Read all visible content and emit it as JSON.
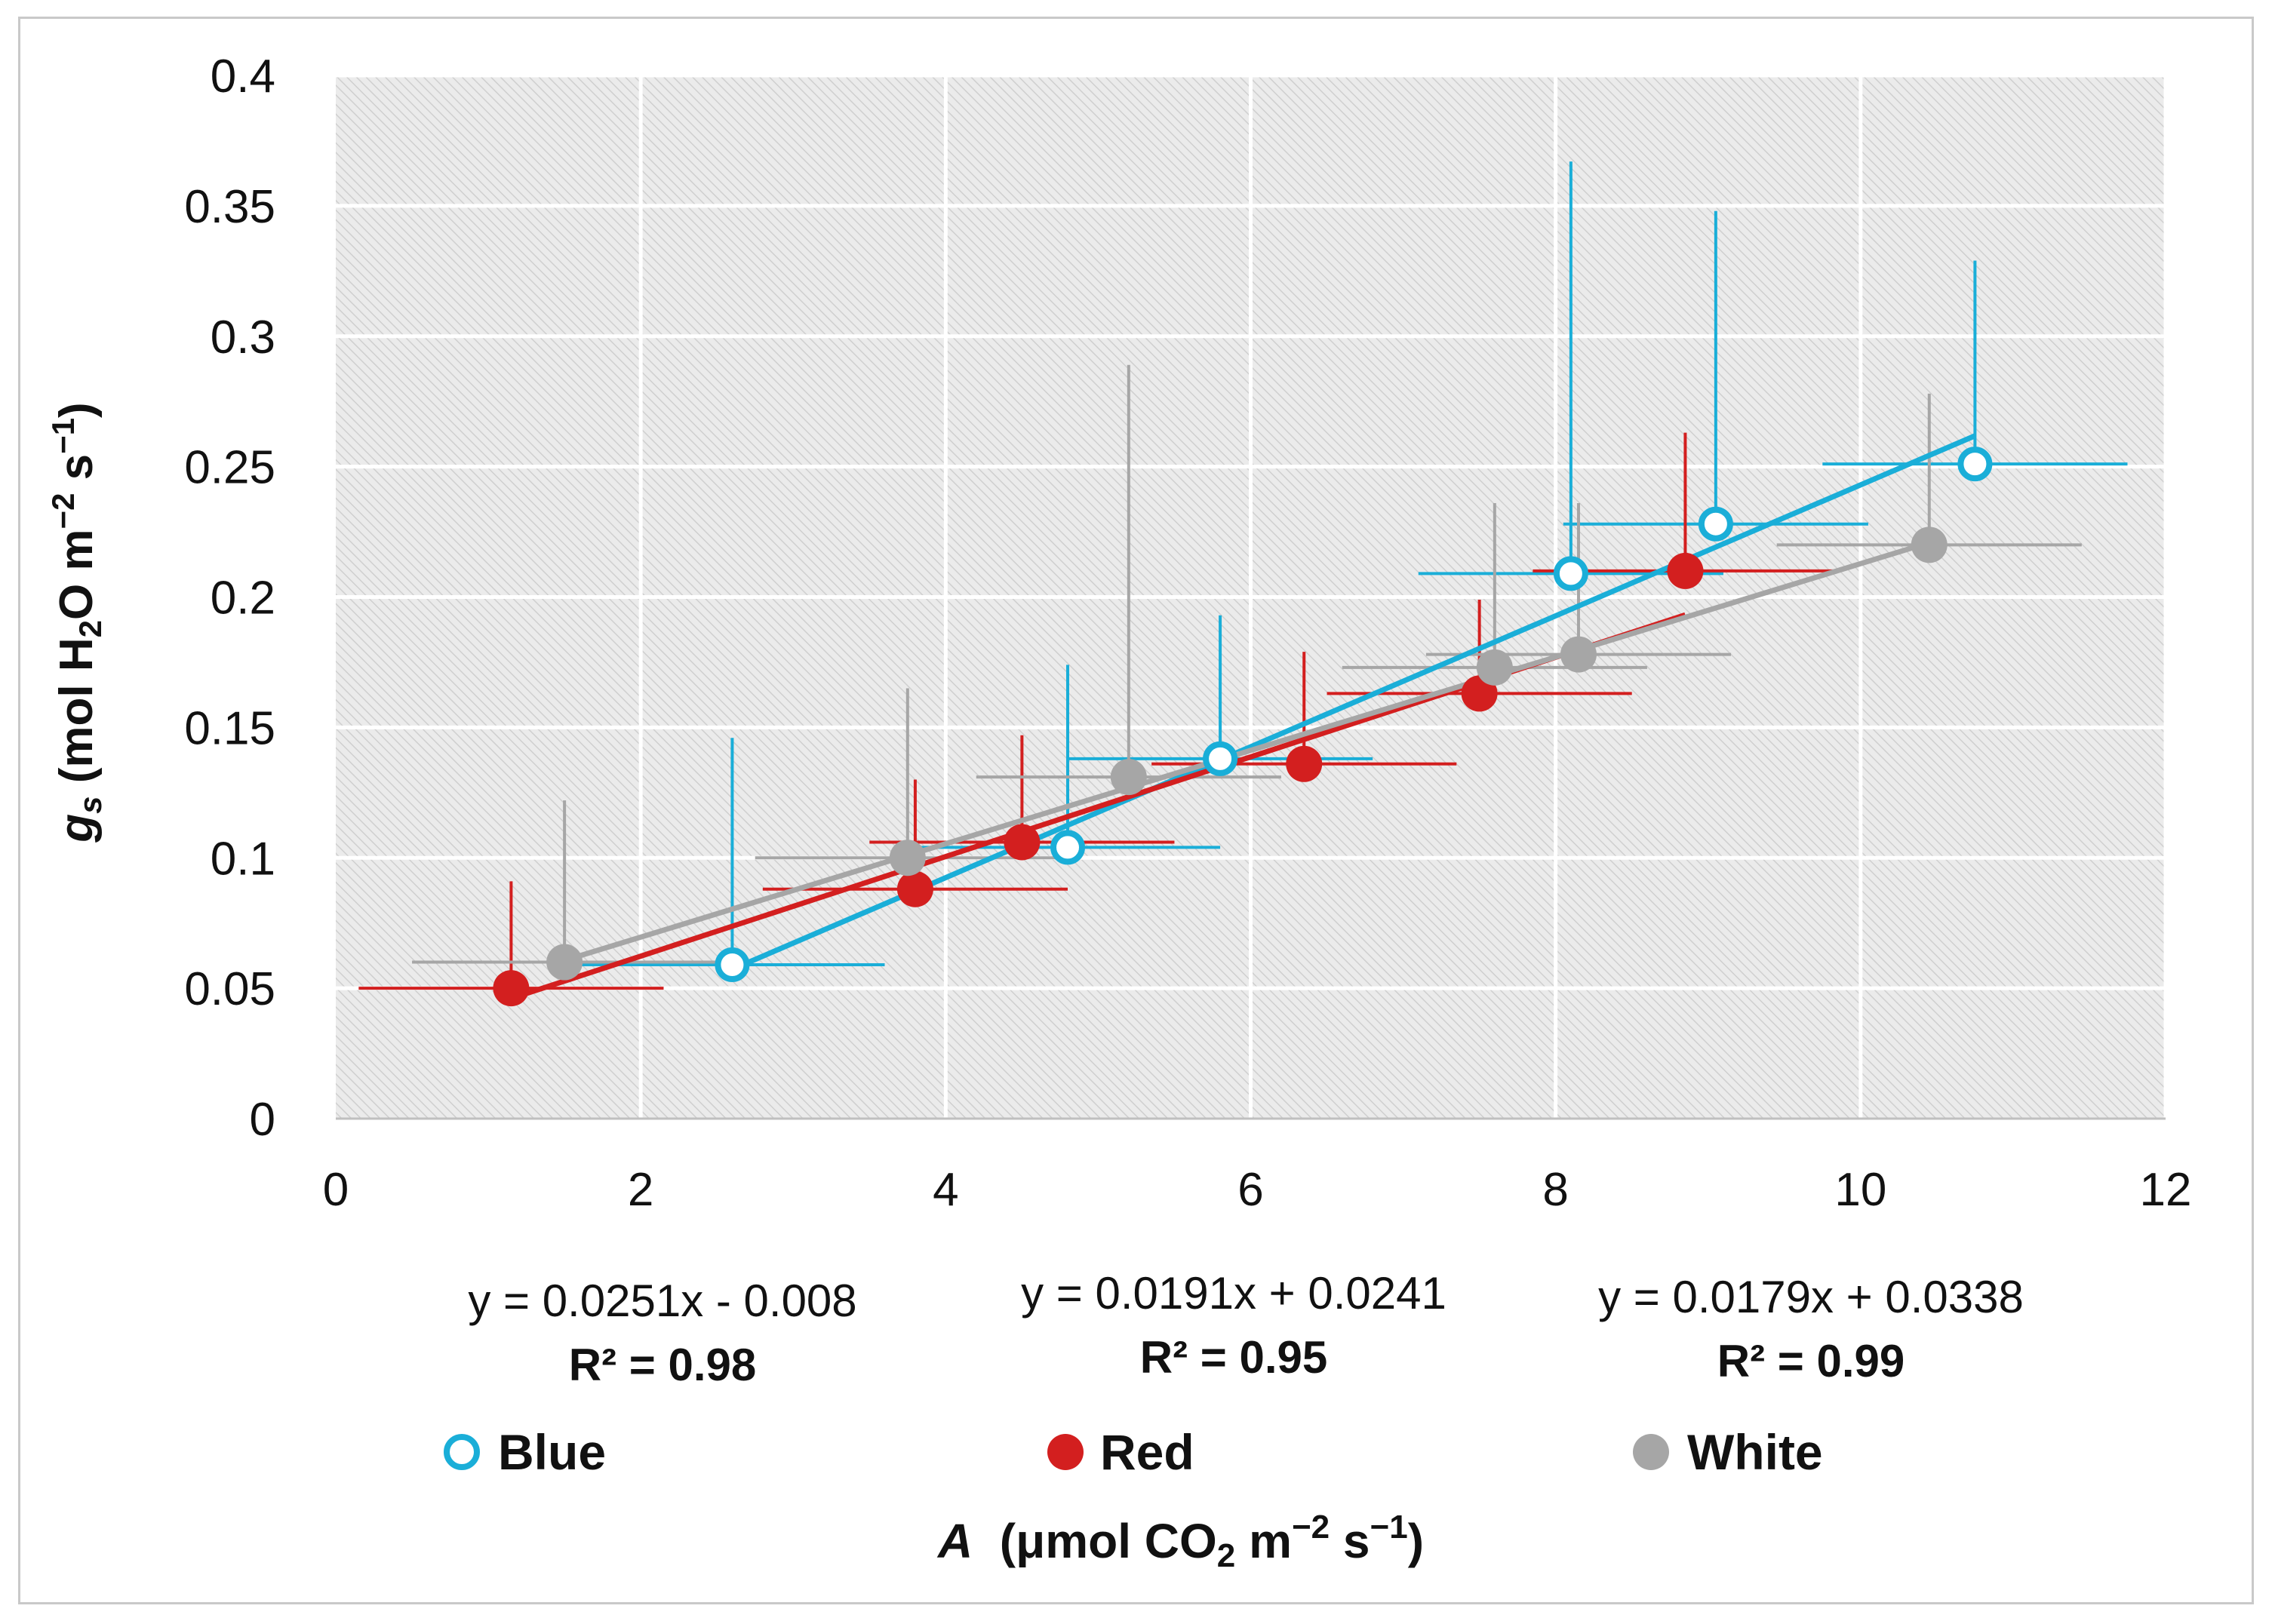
{
  "chart_data": {
    "type": "scatter",
    "xlabel": {
      "italic": "A",
      "rest": "(μmol CO",
      "sub": "2",
      "tail": " m",
      "sup1": "−2",
      "tail2": " s",
      "sup2": "−1",
      "close": ")"
    },
    "ylabel": {
      "italic": "g",
      "isub": "s",
      "rest": " (mol H",
      "sub": "2",
      "tail": "O m",
      "sup1": "−2",
      "tail2": " s",
      "sup2": "−1",
      "close": ")"
    },
    "xlim": [
      0,
      12
    ],
    "ylim": [
      0,
      0.4
    ],
    "xticks": [
      0,
      2,
      4,
      6,
      8,
      10,
      12
    ],
    "yticks": [
      0,
      0.05,
      0.1,
      0.15,
      0.2,
      0.25,
      0.3,
      0.35,
      0.4
    ],
    "ytick_labels": [
      "0",
      "0.05",
      "0.1",
      "0.15",
      "0.2",
      "0.25",
      "0.3",
      "0.35",
      "0.4"
    ],
    "series": [
      {
        "name": "Blue",
        "color": "#1aaed8",
        "marker": "open-circle",
        "points": [
          {
            "x": 2.6,
            "y": 0.059,
            "xerr": 1.0,
            "yerr": 0.087
          },
          {
            "x": 4.8,
            "y": 0.104,
            "xerr": 1.0,
            "yerr": 0.07
          },
          {
            "x": 5.8,
            "y": 0.138,
            "xerr": 1.0,
            "yerr": 0.055
          },
          {
            "x": 8.1,
            "y": 0.209,
            "xerr": 1.0,
            "yerr": 0.158
          },
          {
            "x": 9.05,
            "y": 0.228,
            "xerr": 1.0,
            "yerr": 0.12
          },
          {
            "x": 10.75,
            "y": 0.251,
            "xerr": 1.0,
            "yerr": 0.078
          }
        ],
        "trend": {
          "slope": 0.0251,
          "intercept": -0.008,
          "x_from": 2.6,
          "x_to": 10.75
        },
        "equation": "y = 0.0251x - 0.008",
        "r2": "R² = 0.98"
      },
      {
        "name": "Red",
        "color": "#d31f1f",
        "marker": "filled-circle",
        "points": [
          {
            "x": 1.15,
            "y": 0.05,
            "xerr": 1.0,
            "yerr": 0.041
          },
          {
            "x": 3.8,
            "y": 0.088,
            "xerr": 1.0,
            "yerr": 0.042
          },
          {
            "x": 4.5,
            "y": 0.106,
            "xerr": 1.0,
            "yerr": 0.041
          },
          {
            "x": 6.35,
            "y": 0.136,
            "xerr": 1.0,
            "yerr": 0.043
          },
          {
            "x": 7.5,
            "y": 0.163,
            "xerr": 1.0,
            "yerr": 0.036
          },
          {
            "x": 8.85,
            "y": 0.21,
            "xerr": 1.0,
            "yerr": 0.053
          }
        ],
        "trend": {
          "slope": 0.0191,
          "intercept": 0.0241,
          "x_from": 1.15,
          "x_to": 8.85
        },
        "equation": "y = 0.0191x + 0.0241",
        "r2": "R² = 0.95"
      },
      {
        "name": "White",
        "color": "#a6a6a6",
        "marker": "filled-circle",
        "points": [
          {
            "x": 1.5,
            "y": 0.06,
            "xerr": 1.0,
            "yerr": 0.062
          },
          {
            "x": 3.75,
            "y": 0.1,
            "xerr": 1.0,
            "yerr": 0.065
          },
          {
            "x": 5.2,
            "y": 0.131,
            "xerr": 1.0,
            "yerr": 0.158
          },
          {
            "x": 7.6,
            "y": 0.173,
            "xerr": 1.0,
            "yerr": 0.063
          },
          {
            "x": 8.15,
            "y": 0.178,
            "xerr": 1.0,
            "yerr": 0.058
          },
          {
            "x": 10.45,
            "y": 0.22,
            "xerr": 1.0,
            "yerr": 0.058
          }
        ],
        "trend": {
          "slope": 0.0179,
          "intercept": 0.0338,
          "x_from": 1.5,
          "x_to": 10.45
        },
        "equation": "y = 0.0179x + 0.0338",
        "r2": "R² = 0.99"
      }
    ]
  }
}
